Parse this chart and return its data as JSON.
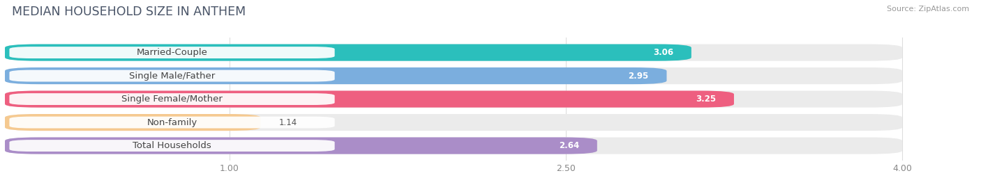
{
  "title": "MEDIAN HOUSEHOLD SIZE IN ANTHEM",
  "source": "Source: ZipAtlas.com",
  "categories": [
    "Married-Couple",
    "Single Male/Father",
    "Single Female/Mother",
    "Non-family",
    "Total Households"
  ],
  "values": [
    3.06,
    2.95,
    3.25,
    1.14,
    2.64
  ],
  "bar_colors": [
    "#2BBFBC",
    "#7BAEDE",
    "#EE5F80",
    "#F5C990",
    "#AA8DC8"
  ],
  "xlim_left": 0.0,
  "xlim_right": 4.22,
  "xdata_max": 4.0,
  "xticks": [
    1.0,
    2.5,
    4.0
  ],
  "background_color": "#ffffff",
  "bar_bg_color": "#ebebeb",
  "title_fontsize": 12.5,
  "label_fontsize": 9.5,
  "value_fontsize": 8.5,
  "tick_fontsize": 9,
  "source_fontsize": 8
}
